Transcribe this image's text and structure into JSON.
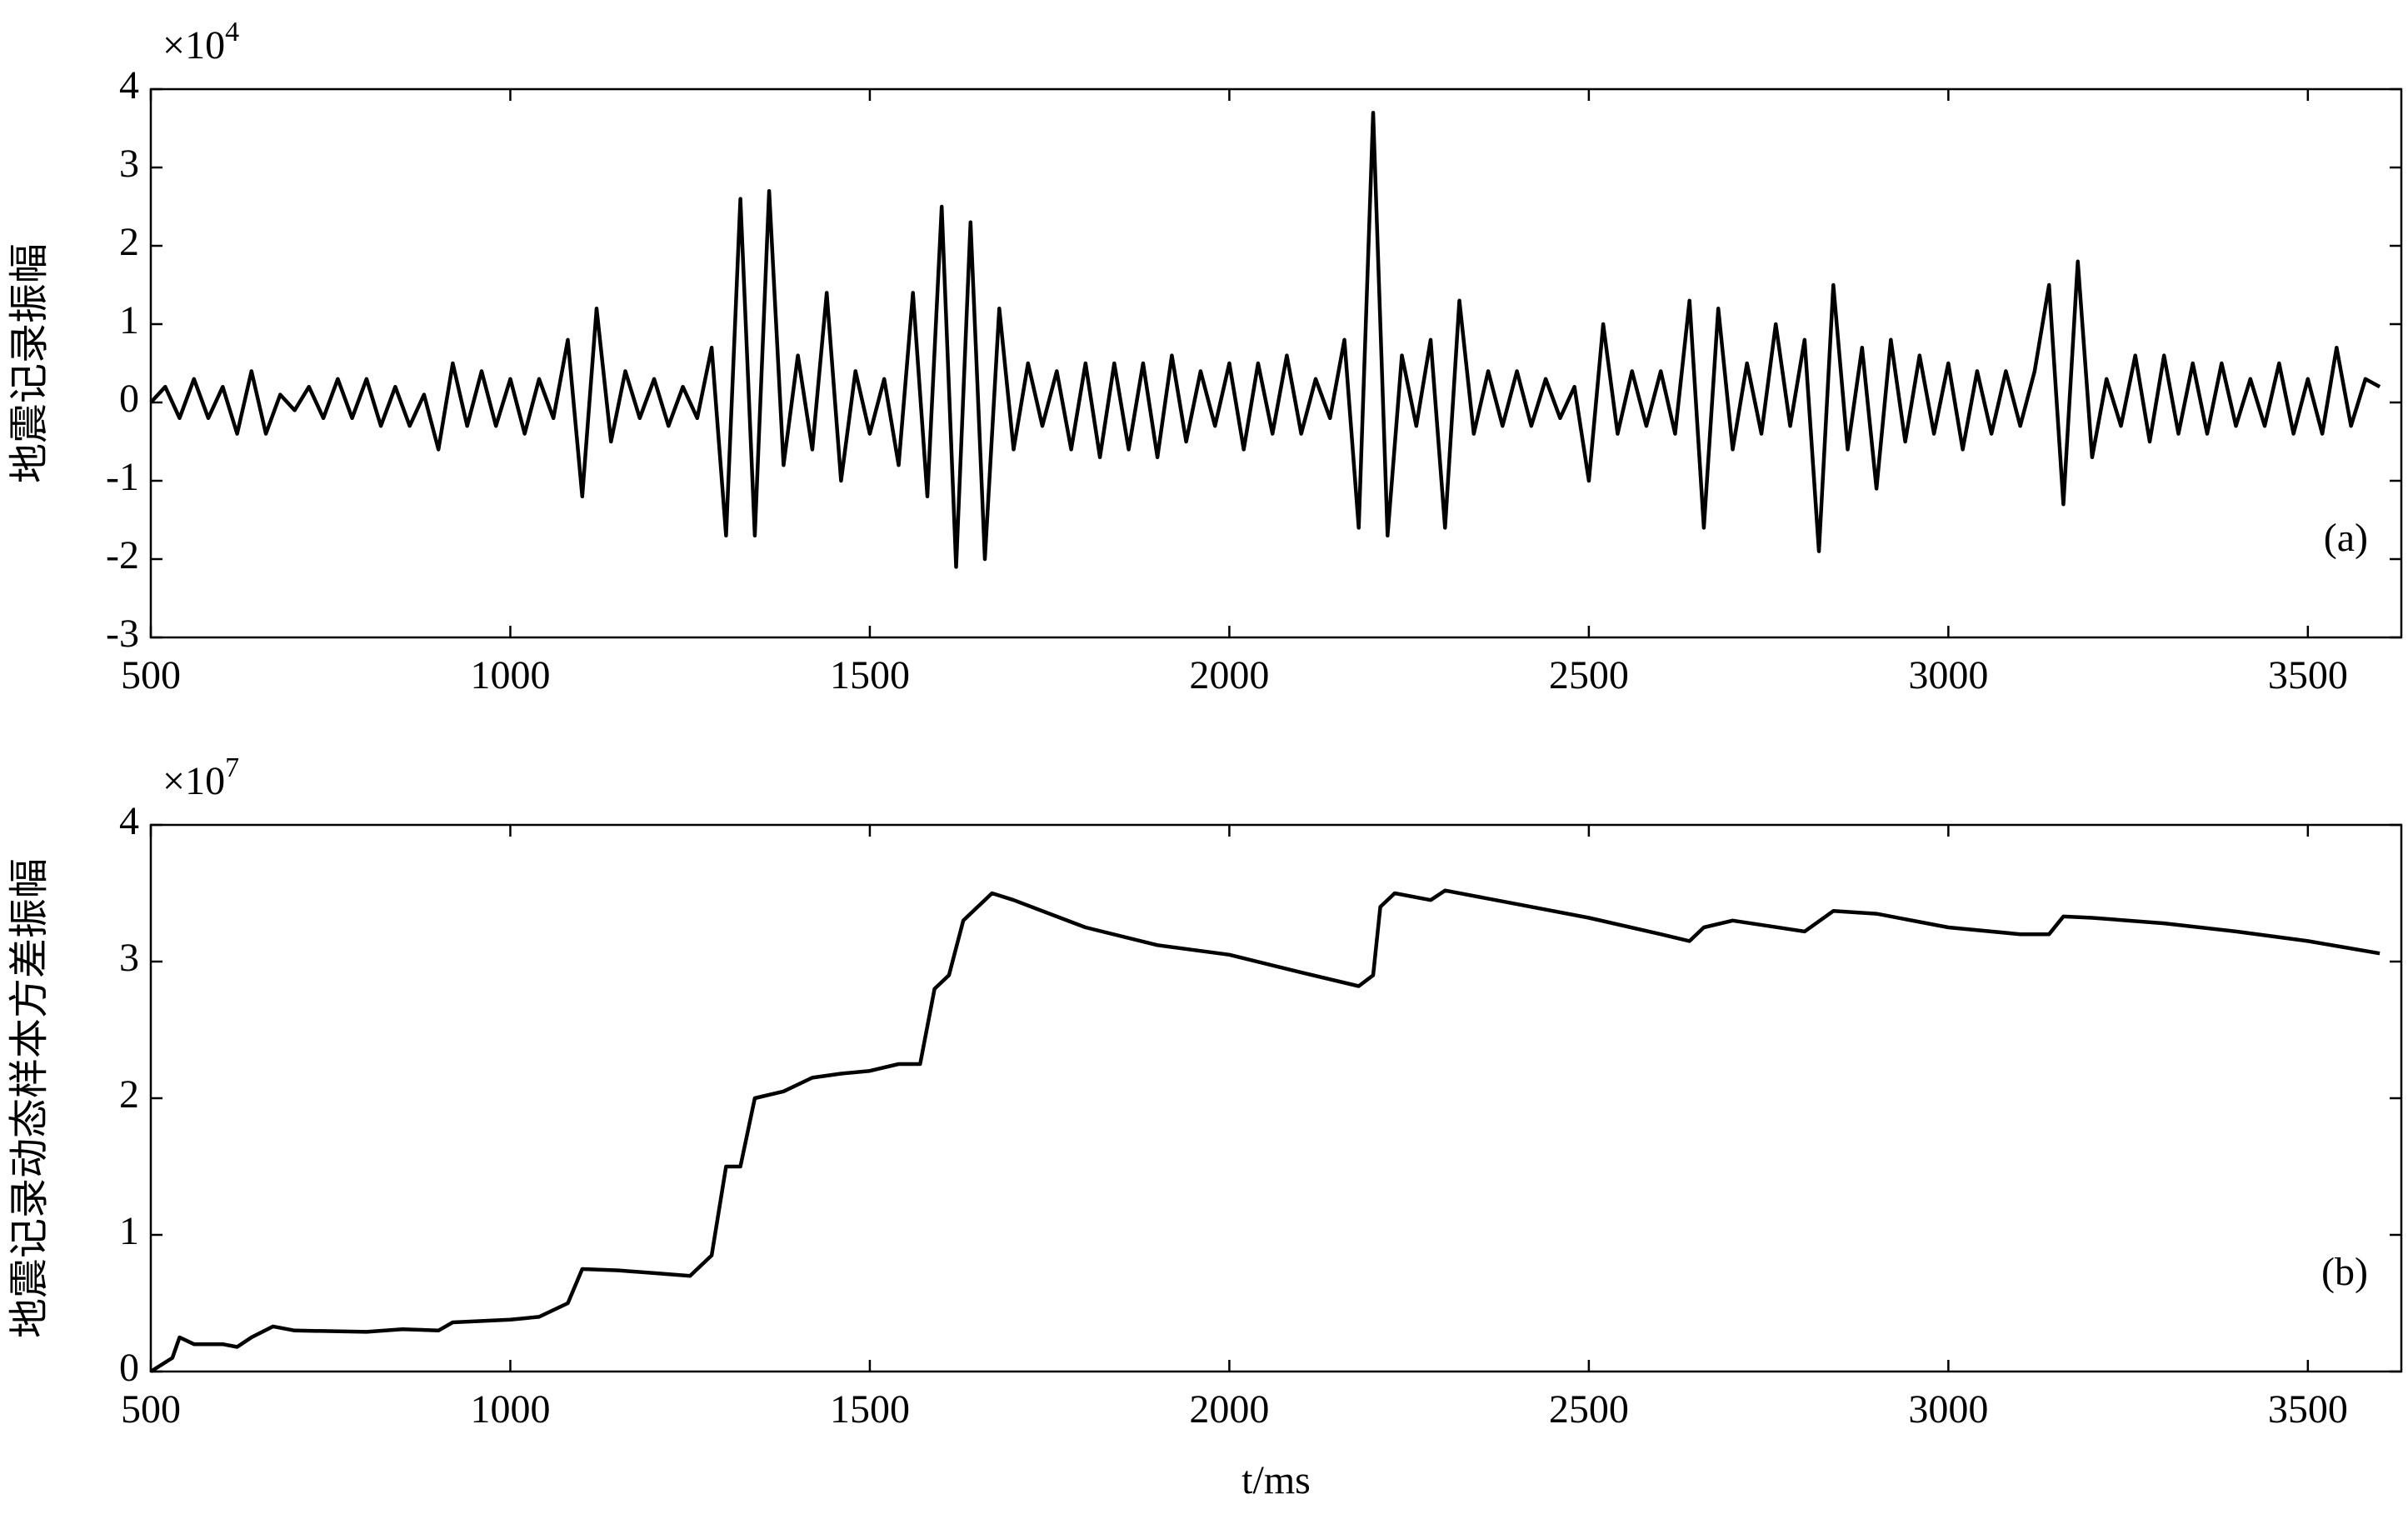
{
  "chart_data": [
    {
      "type": "line",
      "y_label": "地震记录振幅",
      "annotation": "(a)",
      "y_scale_label": "×10",
      "y_scale_exponent": "4",
      "xlim": [
        500,
        3630
      ],
      "xticks": [
        500,
        1000,
        1500,
        2000,
        2500,
        3000,
        3500
      ],
      "ylim": [
        -3,
        4
      ],
      "yticks": [
        -3,
        -2,
        -1,
        0,
        1,
        2,
        3,
        4
      ],
      "x": [
        500,
        520,
        540,
        560,
        580,
        600,
        620,
        640,
        660,
        680,
        700,
        720,
        740,
        760,
        780,
        800,
        820,
        840,
        860,
        880,
        900,
        920,
        940,
        960,
        980,
        1000,
        1020,
        1040,
        1060,
        1080,
        1100,
        1120,
        1140,
        1160,
        1180,
        1200,
        1220,
        1240,
        1260,
        1280,
        1300,
        1320,
        1340,
        1360,
        1380,
        1400,
        1420,
        1440,
        1460,
        1480,
        1500,
        1520,
        1540,
        1560,
        1580,
        1600,
        1620,
        1640,
        1660,
        1680,
        1700,
        1720,
        1740,
        1760,
        1780,
        1800,
        1820,
        1840,
        1860,
        1880,
        1900,
        1920,
        1940,
        1960,
        1980,
        2000,
        2020,
        2040,
        2060,
        2080,
        2100,
        2120,
        2140,
        2160,
        2180,
        2200,
        2220,
        2240,
        2260,
        2280,
        2300,
        2320,
        2340,
        2360,
        2380,
        2400,
        2420,
        2440,
        2460,
        2480,
        2500,
        2520,
        2540,
        2560,
        2580,
        2600,
        2620,
        2640,
        2660,
        2680,
        2700,
        2720,
        2740,
        2760,
        2780,
        2800,
        2820,
        2840,
        2860,
        2880,
        2900,
        2920,
        2940,
        2960,
        2980,
        3000,
        3020,
        3040,
        3060,
        3080,
        3100,
        3120,
        3140,
        3160,
        3180,
        3200,
        3220,
        3240,
        3260,
        3280,
        3300,
        3320,
        3340,
        3360,
        3380,
        3400,
        3420,
        3440,
        3460,
        3480,
        3500,
        3520,
        3540,
        3560,
        3580,
        3600
      ],
      "series": [
        {
          "color": "#000000",
          "values": [
            0,
            0.2,
            -0.2,
            0.3,
            -0.2,
            0.2,
            -0.4,
            0.4,
            -0.4,
            0.1,
            -0.1,
            0.2,
            -0.2,
            0.3,
            -0.2,
            0.3,
            -0.3,
            0.2,
            -0.3,
            0.1,
            -0.6,
            0.5,
            -0.3,
            0.4,
            -0.3,
            0.3,
            -0.4,
            0.3,
            -0.2,
            0.8,
            -1.2,
            1.2,
            -0.5,
            0.4,
            -0.2,
            0.3,
            -0.3,
            0.2,
            -0.2,
            0.7,
            -1.7,
            2.6,
            -1.7,
            2.7,
            -0.8,
            0.6,
            -0.6,
            1.4,
            -1.0,
            0.4,
            -0.4,
            0.3,
            -0.8,
            1.4,
            -1.2,
            2.5,
            -2.1,
            2.3,
            -2.0,
            1.2,
            -0.6,
            0.5,
            -0.3,
            0.4,
            -0.6,
            0.5,
            -0.7,
            0.5,
            -0.6,
            0.5,
            -0.7,
            0.6,
            -0.5,
            0.4,
            -0.3,
            0.5,
            -0.6,
            0.5,
            -0.4,
            0.6,
            -0.4,
            0.3,
            -0.2,
            0.8,
            -1.6,
            3.7,
            -1.7,
            0.6,
            -0.3,
            0.8,
            -1.6,
            1.3,
            -0.4,
            0.4,
            -0.3,
            0.4,
            -0.3,
            0.3,
            -0.2,
            0.2,
            -1.0,
            1.0,
            -0.4,
            0.4,
            -0.3,
            0.4,
            -0.4,
            1.3,
            -1.6,
            1.2,
            -0.6,
            0.5,
            -0.4,
            1.0,
            -0.3,
            0.8,
            -1.9,
            1.5,
            -0.6,
            0.7,
            -1.1,
            0.8,
            -0.5,
            0.6,
            -0.4,
            0.5,
            -0.6,
            0.4,
            -0.4,
            0.4,
            -0.3,
            0.4,
            1.5,
            -1.3,
            1.8,
            -0.7,
            0.3,
            -0.3,
            0.6,
            -0.5,
            0.6,
            -0.4,
            0.5,
            -0.4,
            0.5,
            -0.3,
            0.3,
            -0.3,
            0.5,
            -0.4,
            0.3,
            -0.4,
            0.7,
            -0.3,
            0.3,
            0.2
          ]
        }
      ]
    },
    {
      "type": "line",
      "y_label": "地震记录动态样本方差振幅",
      "annotation": "(b)",
      "y_scale_label": "×10",
      "y_scale_exponent": "7",
      "x_label": "t/ms",
      "xlim": [
        500,
        3630
      ],
      "xticks": [
        500,
        1000,
        1500,
        2000,
        2500,
        3000,
        3500
      ],
      "ylim": [
        0,
        4
      ],
      "yticks": [
        0,
        1,
        2,
        3,
        4
      ],
      "x": [
        500,
        530,
        540,
        560,
        600,
        620,
        640,
        670,
        700,
        800,
        850,
        900,
        920,
        1000,
        1040,
        1080,
        1100,
        1150,
        1200,
        1250,
        1280,
        1300,
        1320,
        1340,
        1380,
        1420,
        1460,
        1500,
        1540,
        1570,
        1590,
        1610,
        1630,
        1670,
        1700,
        1800,
        1900,
        2000,
        2100,
        2180,
        2200,
        2210,
        2230,
        2280,
        2300,
        2400,
        2500,
        2600,
        2640,
        2660,
        2700,
        2800,
        2840,
        2900,
        3000,
        3100,
        3140,
        3160,
        3200,
        3300,
        3400,
        3500,
        3600
      ],
      "series": [
        {
          "color": "#000000",
          "values": [
            0,
            0.1,
            0.25,
            0.2,
            0.2,
            0.18,
            0.25,
            0.33,
            0.3,
            0.29,
            0.31,
            0.3,
            0.36,
            0.38,
            0.4,
            0.5,
            0.75,
            0.74,
            0.72,
            0.7,
            0.85,
            1.5,
            1.5,
            2.0,
            2.05,
            2.15,
            2.18,
            2.2,
            2.25,
            2.25,
            2.8,
            2.9,
            3.3,
            3.5,
            3.45,
            3.25,
            3.12,
            3.05,
            2.92,
            2.82,
            2.9,
            3.4,
            3.5,
            3.45,
            3.52,
            3.42,
            3.32,
            3.2,
            3.15,
            3.25,
            3.3,
            3.22,
            3.37,
            3.35,
            3.25,
            3.2,
            3.2,
            3.33,
            3.32,
            3.28,
            3.22,
            3.15,
            3.06
          ]
        }
      ]
    }
  ]
}
